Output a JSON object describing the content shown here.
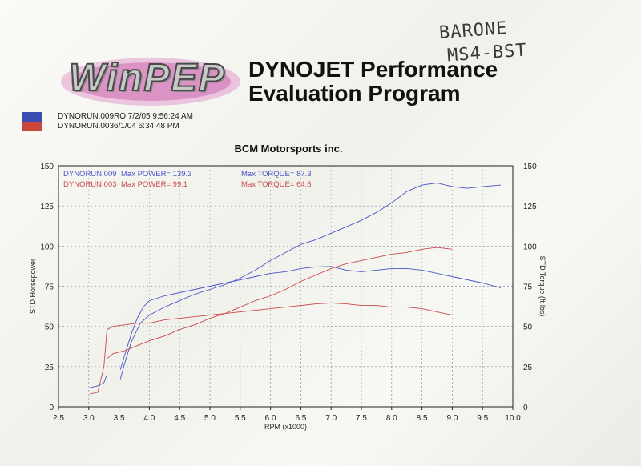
{
  "header": {
    "logo_text": "WinPEP",
    "title_line1": "DYNOJET Performance",
    "title_line2": "Evaluation Program",
    "runs": [
      {
        "label": "DYNORUN.009RO  7/2/05 9:56:24 AM",
        "color": "#3a4db0"
      },
      {
        "label": "DYNORUN.0036/1/04 6:34:48 PM",
        "color": "#c8463c"
      }
    ],
    "handwritten_line1": "BARONE",
    "handwritten_line2": "MS4-BST",
    "company": "BCM Motorsports inc."
  },
  "colors": {
    "blue": "#4a55c8",
    "red": "#c84a4a",
    "grid": "#8a8aa0"
  },
  "chart_data": {
    "type": "line",
    "xlabel": "RPM (x1000)",
    "ylabel_left": "STD Horsepower",
    "ylabel_right": "STD Torque (ft-lbs)",
    "xlim": [
      2.5,
      10.0
    ],
    "ylim": [
      0,
      150
    ],
    "x_ticks": [
      "2.5",
      "3.0",
      "3.5",
      "4.0",
      "4.5",
      "5.0",
      "5.5",
      "6.0",
      "6.5",
      "7.0",
      "7.5",
      "8.0",
      "8.5",
      "9.0",
      "9.5",
      "10.0"
    ],
    "y_ticks": [
      "0",
      "25",
      "50",
      "75",
      "100",
      "125",
      "150"
    ],
    "grid": true,
    "legend": [
      {
        "run": "DYNORUN.009",
        "power": "Max POWER= 139.3",
        "torque": "Max TORQUE= 87.3",
        "color": "#4a55c8"
      },
      {
        "run": "DYNORUN.003",
        "power": "Max POWER= 99.1",
        "torque": "Max TORQUE= 64.6",
        "color": "#c84a4a"
      }
    ],
    "series": [
      {
        "name": "DYNORUN.009 power",
        "color": "#4a55c8",
        "points": [
          [
            3.52,
            17
          ],
          [
            3.6,
            28
          ],
          [
            3.7,
            40
          ],
          [
            3.85,
            52
          ],
          [
            4.0,
            57
          ],
          [
            4.25,
            62
          ],
          [
            4.5,
            66
          ],
          [
            4.75,
            70
          ],
          [
            5.0,
            73
          ],
          [
            5.25,
            76
          ],
          [
            5.5,
            80
          ],
          [
            5.75,
            85
          ],
          [
            6.0,
            91
          ],
          [
            6.25,
            96
          ],
          [
            6.5,
            101
          ],
          [
            6.75,
            104
          ],
          [
            7.0,
            108
          ],
          [
            7.25,
            112
          ],
          [
            7.5,
            116
          ],
          [
            7.75,
            121
          ],
          [
            8.0,
            127
          ],
          [
            8.25,
            134
          ],
          [
            8.5,
            138
          ],
          [
            8.75,
            139.3
          ],
          [
            9.0,
            137
          ],
          [
            9.25,
            136
          ],
          [
            9.5,
            137
          ],
          [
            9.8,
            138
          ]
        ]
      },
      {
        "name": "DYNORUN.009 torque",
        "color": "#4a55c8",
        "points": [
          [
            3.52,
            23
          ],
          [
            3.6,
            33
          ],
          [
            3.7,
            45
          ],
          [
            3.8,
            55
          ],
          [
            3.9,
            62
          ],
          [
            4.0,
            66
          ],
          [
            4.25,
            69
          ],
          [
            4.5,
            71
          ],
          [
            4.75,
            73
          ],
          [
            5.0,
            75
          ],
          [
            5.25,
            77
          ],
          [
            5.5,
            79
          ],
          [
            5.75,
            81
          ],
          [
            6.0,
            83
          ],
          [
            6.25,
            84
          ],
          [
            6.5,
            86
          ],
          [
            6.75,
            87
          ],
          [
            7.0,
            87.3
          ],
          [
            7.25,
            85
          ],
          [
            7.5,
            84
          ],
          [
            7.75,
            85
          ],
          [
            8.0,
            86
          ],
          [
            8.25,
            86
          ],
          [
            8.5,
            85
          ],
          [
            8.75,
            83
          ],
          [
            9.0,
            81
          ],
          [
            9.25,
            79
          ],
          [
            9.5,
            77
          ],
          [
            9.8,
            74
          ]
        ]
      },
      {
        "name": "DYNORUN.003 power",
        "color": "#c84a4a",
        "points": [
          [
            3.3,
            30
          ],
          [
            3.4,
            33
          ],
          [
            3.6,
            35
          ],
          [
            3.8,
            38
          ],
          [
            4.0,
            41
          ],
          [
            4.25,
            44
          ],
          [
            4.5,
            48
          ],
          [
            4.75,
            51
          ],
          [
            5.0,
            55
          ],
          [
            5.25,
            58
          ],
          [
            5.5,
            62
          ],
          [
            5.75,
            66
          ],
          [
            6.0,
            69
          ],
          [
            6.25,
            73
          ],
          [
            6.5,
            78
          ],
          [
            6.75,
            82
          ],
          [
            7.0,
            86
          ],
          [
            7.25,
            89
          ],
          [
            7.5,
            91
          ],
          [
            7.75,
            93
          ],
          [
            8.0,
            95
          ],
          [
            8.25,
            96
          ],
          [
            8.5,
            98
          ],
          [
            8.75,
            99.1
          ],
          [
            9.0,
            98
          ]
        ]
      },
      {
        "name": "DYNORUN.003 torque",
        "color": "#c84a4a",
        "points": [
          [
            3.02,
            8
          ],
          [
            3.15,
            9
          ],
          [
            3.25,
            25
          ],
          [
            3.3,
            48
          ],
          [
            3.4,
            50
          ],
          [
            3.6,
            51
          ],
          [
            3.8,
            52
          ],
          [
            4.0,
            52
          ],
          [
            4.25,
            54
          ],
          [
            4.5,
            55
          ],
          [
            4.75,
            56
          ],
          [
            5.0,
            57
          ],
          [
            5.25,
            58
          ],
          [
            5.5,
            59
          ],
          [
            5.75,
            60
          ],
          [
            6.0,
            61
          ],
          [
            6.25,
            62
          ],
          [
            6.5,
            63
          ],
          [
            6.75,
            64
          ],
          [
            7.0,
            64.6
          ],
          [
            7.25,
            64
          ],
          [
            7.5,
            63
          ],
          [
            7.75,
            63
          ],
          [
            8.0,
            62
          ],
          [
            8.25,
            62
          ],
          [
            8.5,
            61
          ],
          [
            8.75,
            59
          ],
          [
            9.0,
            57
          ]
        ]
      },
      {
        "name": "DYNORUN.003 power low",
        "color": "#4a55c8",
        "points": [
          [
            3.02,
            12
          ],
          [
            3.15,
            13
          ],
          [
            3.25,
            15
          ],
          [
            3.3,
            20
          ]
        ]
      }
    ]
  }
}
